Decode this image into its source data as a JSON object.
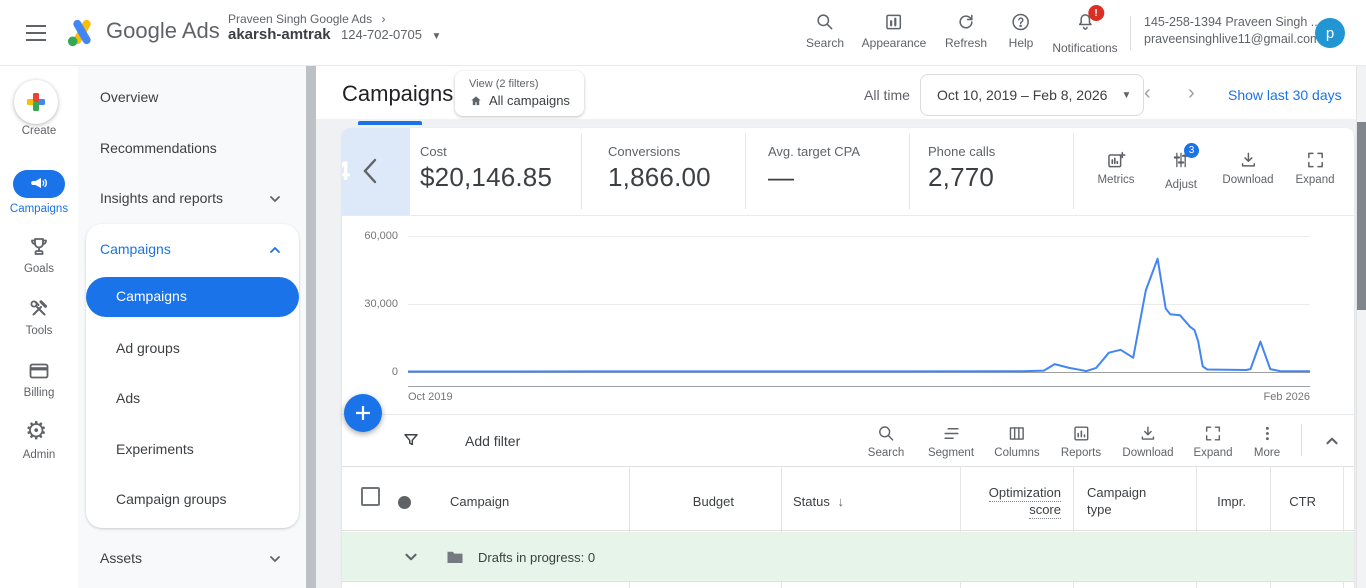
{
  "topbar": {
    "brand": "Google Ads",
    "breadcrumb_account": "Praveen Singh Google Ads",
    "account_name": "akarsh-amtrak",
    "account_id": "124-702-0705",
    "actions": {
      "search": "Search",
      "appearance": "Appearance",
      "refresh": "Refresh",
      "help": "Help",
      "notifications": "Notifications",
      "notification_badge": "!"
    },
    "user_line1": "145-258-1394 Praveen Singh ...",
    "user_line2": "praveensinghlive11@gmail.com",
    "avatar_initial": "p"
  },
  "rail": {
    "create": "Create",
    "campaigns": "Campaigns",
    "goals": "Goals",
    "tools": "Tools",
    "billing": "Billing",
    "admin": "Admin"
  },
  "sidebar": {
    "overview": "Overview",
    "recommendations": "Recommendations",
    "insights": "Insights and reports",
    "campaigns_section": "Campaigns",
    "campaigns_selected": "Campaigns",
    "ad_groups": "Ad groups",
    "ads": "Ads",
    "experiments": "Experiments",
    "campaign_groups": "Campaign groups",
    "assets": "Assets"
  },
  "header": {
    "title": "Campaigns",
    "view_label": "View (2 filters)",
    "view_value": "All campaigns",
    "range_shortcut": "All time",
    "date_range": "Oct 10, 2019 – Feb 8, 2026",
    "show_last": "Show last 30 days"
  },
  "metrics": {
    "page_indicator": "4",
    "cards": [
      {
        "label": "Cost",
        "value": "$20,146.85"
      },
      {
        "label": "Conversions",
        "value": "1,866.00"
      },
      {
        "label": "Avg. target CPA",
        "value": "—"
      },
      {
        "label": "Phone calls",
        "value": "2,770"
      }
    ],
    "buttons": {
      "metrics": "Metrics",
      "adjust": "Adjust",
      "adjust_badge": "3",
      "download": "Download",
      "expand": "Expand"
    }
  },
  "chart_data": {
    "type": "line",
    "title": "",
    "ylim": [
      0,
      60000
    ],
    "ytick_labels": [
      "60,000",
      "30,000",
      "0"
    ],
    "x_start_label": "Oct 2019",
    "x_end_label": "Feb 2026",
    "x_unit": "fraction-of-range",
    "line_color": "#4285f4",
    "grid": true,
    "points": [
      [
        0,
        200
      ],
      [
        0.2,
        250
      ],
      [
        0.4,
        250
      ],
      [
        0.55,
        280
      ],
      [
        0.68,
        300
      ],
      [
        0.705,
        600
      ],
      [
        0.717,
        3500
      ],
      [
        0.733,
        1800
      ],
      [
        0.744,
        1000
      ],
      [
        0.752,
        400
      ],
      [
        0.763,
        1800
      ],
      [
        0.777,
        8500
      ],
      [
        0.79,
        9800
      ],
      [
        0.804,
        6300
      ],
      [
        0.818,
        36000
      ],
      [
        0.831,
        50000
      ],
      [
        0.84,
        28000
      ],
      [
        0.845,
        25500
      ],
      [
        0.856,
        25000
      ],
      [
        0.867,
        20000
      ],
      [
        0.872,
        18500
      ],
      [
        0.876,
        13500
      ],
      [
        0.881,
        2500
      ],
      [
        0.886,
        1100
      ],
      [
        0.929,
        900
      ],
      [
        0.934,
        1300
      ],
      [
        0.945,
        13400
      ],
      [
        0.956,
        1300
      ],
      [
        0.967,
        400
      ],
      [
        1,
        300
      ]
    ]
  },
  "filter_bar": {
    "add_filter": "Add filter",
    "buttons": {
      "search": "Search",
      "segment": "Segment",
      "columns": "Columns",
      "reports": "Reports",
      "download": "Download",
      "expand": "Expand",
      "more": "More"
    }
  },
  "table": {
    "headers": {
      "campaign": "Campaign",
      "budget": "Budget",
      "status": "Status",
      "status_sort": "↓",
      "optimization_line1": "Optimization",
      "optimization_line2": "score",
      "campaign_type_line1": "Campaign",
      "campaign_type_line2": "type",
      "impressions": "Impr.",
      "ctr": "CTR"
    },
    "rows": [
      {
        "label": "Drafts in progress: 0"
      }
    ]
  },
  "colors": {
    "accent": "#1a73e8",
    "chart_line": "#4285f4",
    "row_highlight": "#e6f4ea",
    "badge_red": "#d93025"
  }
}
